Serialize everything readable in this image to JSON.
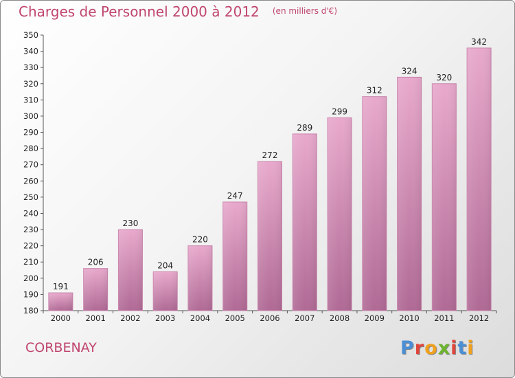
{
  "title": "Charges de Personnel 2000 à 2012",
  "subtitle": "(en milliers d'€)",
  "commune": "CORBENAY",
  "brand": {
    "name": "Proxiti",
    "letter_colors": [
      "#4a8fd6",
      "#e0463c",
      "#f0a11e",
      "#6cb52e",
      "#e0463c",
      "#4a8fd6",
      "#f0a11e"
    ]
  },
  "colors": {
    "bar_top": "#e8a9cc",
    "bar_bottom": "#b06a95",
    "bar_edge": "#c983ac",
    "title": "#c0456f"
  },
  "chart_data": {
    "type": "bar",
    "title": "Charges de Personnel 2000 à 2012",
    "subtitle": "(en milliers d'€)",
    "categories": [
      "2000",
      "2001",
      "2002",
      "2003",
      "2004",
      "2005",
      "2006",
      "2007",
      "2008",
      "2009",
      "2010",
      "2011",
      "2012"
    ],
    "values": [
      191,
      206,
      230,
      204,
      220,
      247,
      272,
      289,
      299,
      312,
      324,
      320,
      342
    ],
    "ylim": [
      180,
      350
    ],
    "yticks": [
      180,
      190,
      200,
      210,
      220,
      230,
      240,
      250,
      260,
      270,
      280,
      290,
      300,
      310,
      320,
      330,
      340,
      350
    ],
    "grid": false,
    "data_labels": true
  }
}
